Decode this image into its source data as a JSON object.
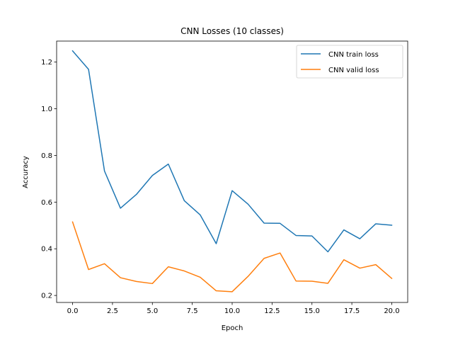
{
  "chart_data": {
    "type": "line",
    "title": "CNN Losses (10 classes)",
    "xlabel": "Epoch",
    "ylabel": "Accuracy",
    "xlim": [
      -1.0,
      21.0
    ],
    "ylim": [
      0.17,
      1.29
    ],
    "xticks": [
      "0.0",
      "2.5",
      "5.0",
      "7.5",
      "10.0",
      "12.5",
      "15.0",
      "17.5",
      "20.0"
    ],
    "xtick_values": [
      0,
      2.5,
      5,
      7.5,
      10,
      12.5,
      15,
      17.5,
      20
    ],
    "yticks": [
      "0.2",
      "0.4",
      "0.6",
      "0.8",
      "1.0",
      "1.2"
    ],
    "ytick_values": [
      0.2,
      0.4,
      0.6,
      0.8,
      1.0,
      1.2
    ],
    "grid": false,
    "legend_position": "top-right",
    "x": [
      0,
      1,
      2,
      3,
      4,
      5,
      6,
      7,
      8,
      9,
      10,
      11,
      12,
      13,
      14,
      15,
      16,
      17,
      18,
      19,
      20
    ],
    "series": [
      {
        "name": "CNN train loss",
        "color": "#1f77b4",
        "values": [
          1.248,
          1.169,
          0.733,
          0.574,
          0.633,
          0.714,
          0.763,
          0.606,
          0.545,
          0.422,
          0.649,
          0.591,
          0.51,
          0.509,
          0.457,
          0.455,
          0.387,
          0.481,
          0.443,
          0.507,
          0.501
        ]
      },
      {
        "name": "CNN valid loss",
        "color": "#ff7f0e",
        "values": [
          0.515,
          0.311,
          0.336,
          0.276,
          0.26,
          0.251,
          0.323,
          0.305,
          0.278,
          0.22,
          0.216,
          0.282,
          0.359,
          0.382,
          0.262,
          0.261,
          0.252,
          0.353,
          0.317,
          0.332,
          0.273
        ]
      }
    ]
  }
}
